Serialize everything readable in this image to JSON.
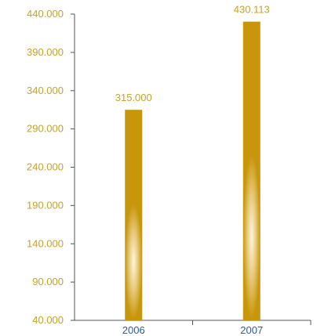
{
  "chart_data": {
    "type": "bar",
    "title": "",
    "xlabel": "",
    "ylabel": "",
    "categories": [
      "2006",
      "2007"
    ],
    "values": [
      315000,
      430113
    ],
    "value_labels": [
      "315.000",
      "430.113"
    ],
    "ylim": [
      40000,
      440000
    ],
    "yticks": [
      40000,
      90000,
      140000,
      190000,
      240000,
      290000,
      340000,
      390000,
      440000
    ],
    "ytick_labels": [
      "40.000",
      "90.000",
      "140.000",
      "190.000",
      "240.000",
      "290.000",
      "340.000",
      "390.000",
      "440.000"
    ],
    "grid": false,
    "legend": "none",
    "colors": {
      "bar_dark": "#c8960a",
      "bar_light": "#fff6dc",
      "label": "#c9a227",
      "x_tick_label": "#2c5aa0",
      "axis": "#555555"
    }
  }
}
